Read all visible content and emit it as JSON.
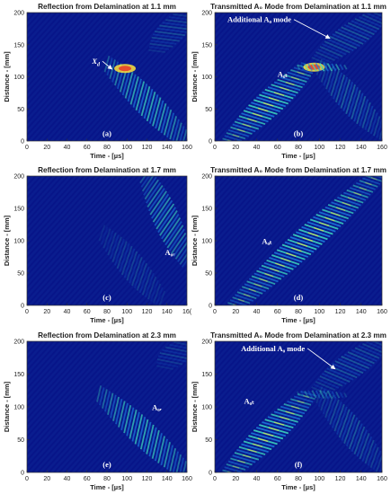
{
  "colors": {
    "background": "#0a1d8f",
    "stripe_dark": "#00007a",
    "stripe_mid": "#1c7fe0",
    "stripe_bright": "#3fe0c0",
    "stripe_peak": "#ffe23b",
    "hot": "#e8402a",
    "annotation": "#ffffff"
  },
  "chart_data": [
    {
      "type": "heatmap",
      "title": "Reflection from Delamination at 1.1 mm",
      "xlabel": "Time - [µs]",
      "ylabel": "Distance - [mm]",
      "xlim": [
        0,
        160
      ],
      "ylim": [
        0,
        200
      ],
      "xticks": [
        "0",
        "20",
        "40",
        "60",
        "80",
        "100",
        "120",
        "140",
        "160"
      ],
      "yticks": [
        "0",
        "50",
        "100",
        "150",
        "200"
      ],
      "panel_label": "(a)",
      "annotations": [
        {
          "text": "X",
          "sub": "d",
          "x": 65,
          "y": 120,
          "arrow_to": [
            85,
            112
          ]
        }
      ],
      "features": [
        {
          "name": "reflected",
          "t0": 80,
          "t1": 160,
          "d0": 120,
          "d1": 0,
          "intensity": 0.7
        },
        {
          "name": "spot",
          "t": 98,
          "d": 113,
          "intensity": 1.0
        },
        {
          "name": "faint",
          "t0": 130,
          "t1": 158,
          "d0": 140,
          "d1": 200,
          "intensity": 0.25
        }
      ]
    },
    {
      "type": "heatmap",
      "title": "Transmitted A₀ Mode from Delamination at 1.1 mm",
      "xlabel": "Time - [µs]",
      "ylabel": "Distance - [mm]",
      "xlim": [
        0,
        160
      ],
      "ylim": [
        0,
        200
      ],
      "xticks": [
        "0",
        "20",
        "40",
        "60",
        "80",
        "100",
        "120",
        "140",
        "160"
      ],
      "yticks": [
        "0",
        "50",
        "100",
        "150",
        "200"
      ],
      "panel_label": "(b)",
      "annotations": [
        {
          "text": "Additional A₀ mode",
          "x": 12,
          "y": 185,
          "arrow_to": [
            110,
            160
          ]
        },
        {
          "text": "A₀ₜ",
          "x": 60,
          "y": 100
        }
      ],
      "features": [
        {
          "name": "transmitted",
          "t0": 15,
          "t1": 90,
          "d0": 0,
          "d1": 118,
          "intensity": 0.85
        },
        {
          "name": "spot",
          "t": 95,
          "d": 115,
          "intensity": 1.0
        },
        {
          "name": "horizontal",
          "t0": 80,
          "t1": 125,
          "d0": 115,
          "d1": 115,
          "intensity": 0.7
        },
        {
          "name": "reflected",
          "t0": 100,
          "t1": 160,
          "d0": 115,
          "d1": 15,
          "intensity": 0.35
        },
        {
          "name": "additional",
          "t0": 100,
          "t1": 160,
          "d0": 125,
          "d1": 200,
          "intensity": 0.3
        }
      ]
    },
    {
      "type": "heatmap",
      "title": "Reflection from Delamination at 1.7 mm",
      "xlabel": "Time - [µs]",
      "ylabel": "Distance - [mm]",
      "xlim": [
        0,
        160
      ],
      "ylim": [
        0,
        200
      ],
      "xticks": [
        "0",
        "20",
        "40",
        "60",
        "80",
        "100",
        "120",
        "140",
        "16("
      ],
      "yticks": [
        "0",
        "50",
        "100",
        "150",
        "200"
      ],
      "panel_label": "(c)",
      "annotations": [
        {
          "text": "A₀ᵣ",
          "x": 138,
          "y": 78
        }
      ],
      "features": [
        {
          "name": "reflected",
          "t0": 118,
          "t1": 160,
          "d0": 200,
          "d1": 70,
          "intensity": 0.6
        },
        {
          "name": "faint",
          "t0": 75,
          "t1": 135,
          "d0": 112,
          "d1": 10,
          "intensity": 0.2
        }
      ]
    },
    {
      "type": "heatmap",
      "title": "Transmitted A₀ Mode from Delamination at 1.7 mm",
      "xlabel": "Time - [µs]",
      "ylabel": "Distance - [mm]",
      "xlim": [
        0,
        160
      ],
      "ylim": [
        0,
        200
      ],
      "xticks": [
        "0",
        "20",
        "40",
        "60",
        "80",
        "100",
        "120",
        "140",
        "160"
      ],
      "yticks": [
        "0",
        "50",
        "100",
        "150",
        "200"
      ],
      "panel_label": "(d)",
      "annotations": [
        {
          "text": "A₀ₜ",
          "x": 45,
          "y": 95
        }
      ],
      "features": [
        {
          "name": "transmitted",
          "t0": 20,
          "t1": 155,
          "d0": 0,
          "d1": 200,
          "intensity": 0.85
        }
      ]
    },
    {
      "type": "heatmap",
      "title": "Reflection from Delamination at 2.3 mm",
      "xlabel": "Time - [µs]",
      "ylabel": "Distance - [mm]",
      "xlim": [
        0,
        160
      ],
      "ylim": [
        0,
        200
      ],
      "xticks": [
        "0",
        "20",
        "40",
        "60",
        "80",
        "100",
        "120",
        "140",
        "160"
      ],
      "yticks": [
        "0",
        "50",
        "100",
        "150",
        "200"
      ],
      "panel_label": "(e)",
      "annotations": [
        {
          "text": "A₀ᵣ",
          "x": 125,
          "y": 95
        }
      ],
      "features": [
        {
          "name": "reflected",
          "t0": 72,
          "t1": 160,
          "d0": 120,
          "d1": 0,
          "intensity": 0.7
        },
        {
          "name": "faint",
          "t0": 138,
          "t1": 160,
          "d0": 160,
          "d1": 200,
          "intensity": 0.2
        }
      ]
    },
    {
      "type": "heatmap",
      "title": "Transmitted A₀ Mode from Delamination at 2.3 mm",
      "xlabel": "Time - [µs]",
      "ylabel": "Distance - [mm]",
      "xlim": [
        0,
        160
      ],
      "ylim": [
        0,
        200
      ],
      "xticks": [
        "0",
        "20",
        "40",
        "60",
        "80",
        "100",
        "120",
        "140",
        "160"
      ],
      "yticks": [
        "0",
        "50",
        "100",
        "150",
        "200"
      ],
      "panel_label": "(f)",
      "annotations": [
        {
          "text": "Additional A₀ mode",
          "x": 25,
          "y": 185,
          "arrow_to": [
            115,
            158
          ]
        },
        {
          "text": "A₀ₜ",
          "x": 28,
          "y": 105
        }
      ],
      "features": [
        {
          "name": "transmitted",
          "t0": 15,
          "t1": 90,
          "d0": 0,
          "d1": 120,
          "intensity": 0.85
        },
        {
          "name": "horizontal",
          "t0": 80,
          "t1": 125,
          "d0": 120,
          "d1": 118,
          "intensity": 0.4
        },
        {
          "name": "reflected",
          "t0": 100,
          "t1": 160,
          "d0": 118,
          "d1": 10,
          "intensity": 0.3
        },
        {
          "name": "additional",
          "t0": 100,
          "t1": 160,
          "d0": 125,
          "d1": 200,
          "intensity": 0.3
        }
      ]
    }
  ]
}
